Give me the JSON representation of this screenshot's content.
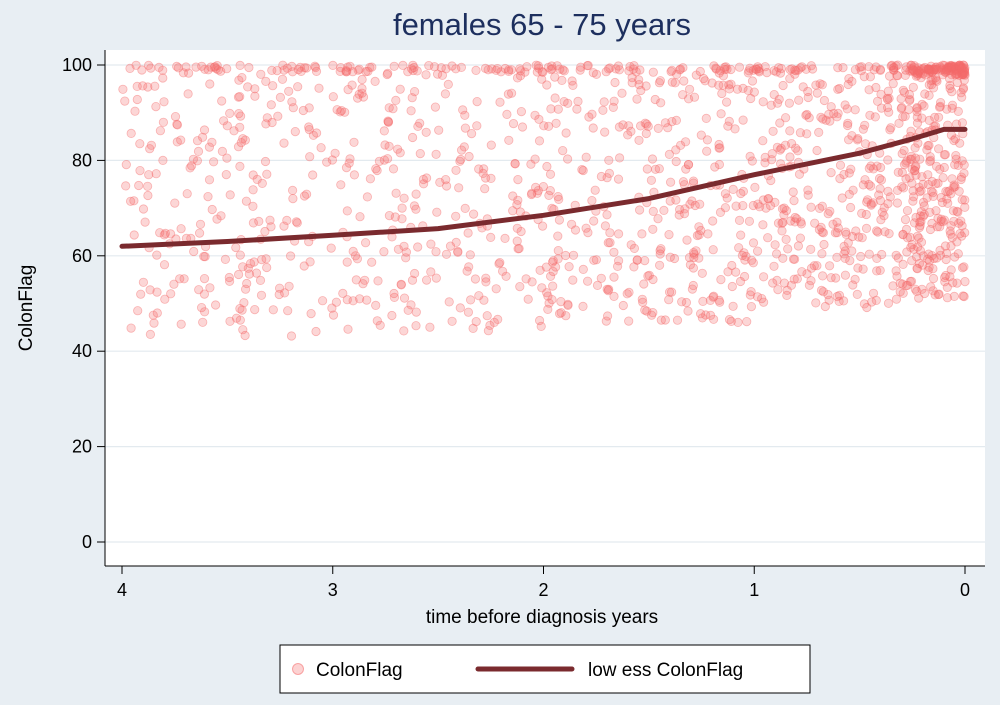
{
  "chart_data": {
    "type": "scatter",
    "title": "females  65 - 75 years",
    "xlabel": "time before diagnosis years",
    "ylabel": "ColonFlag",
    "xlim": [
      4,
      0
    ],
    "ylim": [
      0,
      100
    ],
    "x_ticks": [
      4,
      3,
      2,
      1,
      0
    ],
    "y_ticks": [
      0,
      20,
      40,
      60,
      80,
      100
    ],
    "grid": "horizontal",
    "legend_position": "bottom",
    "colors": {
      "scatter": "#f46a6a",
      "lowess": "#7a2a2e",
      "background": "#e8eef3",
      "plot_background": "#ffffff",
      "title": "#1d2f5e"
    },
    "scatter_series": {
      "name": "ColonFlag",
      "description": "individual patient scores (dense cloud, approximated)",
      "density_by_x": [
        {
          "x_range": [
            4.0,
            3.0
          ],
          "y_range": [
            43,
            100
          ],
          "relative_density": 1.0
        },
        {
          "x_range": [
            3.0,
            2.0
          ],
          "y_range": [
            44,
            100
          ],
          "relative_density": 1.1
        },
        {
          "x_range": [
            2.0,
            1.0
          ],
          "y_range": [
            46,
            100
          ],
          "relative_density": 1.4
        },
        {
          "x_range": [
            1.0,
            0.3
          ],
          "y_range": [
            49,
            100
          ],
          "relative_density": 1.8
        },
        {
          "x_range": [
            0.3,
            0.0
          ],
          "y_range": [
            51,
            100
          ],
          "relative_density": 4.0
        }
      ],
      "cluster_at_y100": {
        "x_range": [
          0.25,
          0.0
        ],
        "y": 100
      }
    },
    "lowess_series": {
      "name": "low ess ColonFlag",
      "x": [
        4.0,
        3.5,
        3.0,
        2.5,
        2.0,
        1.5,
        1.0,
        0.5,
        0.25,
        0.1,
        0.0
      ],
      "y": [
        62,
        63,
        64.3,
        65.7,
        68.5,
        72,
        77,
        81.5,
        84.5,
        86.5,
        86.5
      ]
    }
  }
}
